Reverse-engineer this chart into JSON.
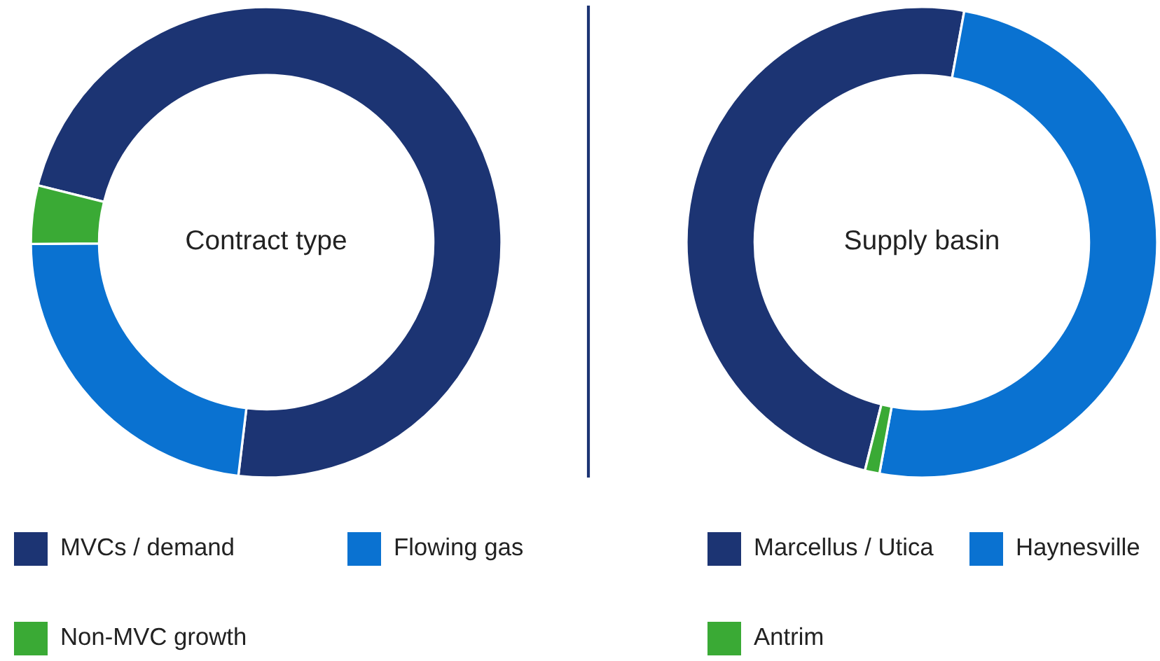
{
  "chart_data": [
    {
      "type": "donut",
      "title": "Contract type",
      "categories": [
        "MVCs / demand",
        "Flowing gas",
        "Non-MVC growth"
      ],
      "values": [
        73,
        23,
        4
      ],
      "colors": [
        "#1c3473",
        "#0a72d1",
        "#3aaa35"
      ],
      "legend": "bottom"
    },
    {
      "type": "donut",
      "title": "Supply basin",
      "categories": [
        "Marcellus / Utica",
        "Haynesville",
        "Antrim"
      ],
      "values": [
        49,
        50,
        1
      ],
      "colors": [
        "#1c3473",
        "#0a72d1",
        "#3aaa35"
      ],
      "legend": "bottom"
    }
  ]
}
